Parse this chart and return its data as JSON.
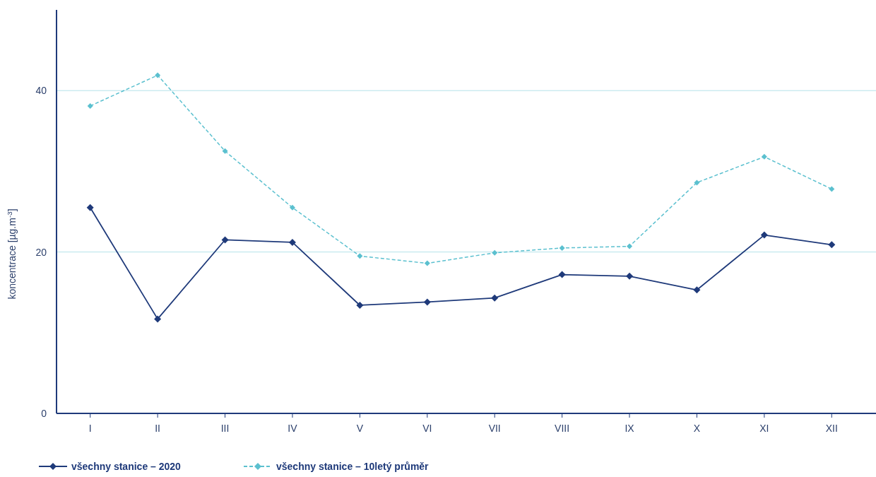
{
  "chart_data": {
    "type": "line",
    "ylabel": "koncentrace [µg.m$^{-3}$]",
    "categories": [
      "I",
      "II",
      "III",
      "IV",
      "V",
      "VI",
      "VII",
      "VIII",
      "IX",
      "X",
      "XI",
      "XII"
    ],
    "series": [
      {
        "name": "všechny stanice – 2020",
        "color": "#1f3a7a",
        "marker": "diamond",
        "line_style": "solid",
        "values": [
          25.5,
          11.7,
          21.5,
          21.2,
          13.4,
          13.8,
          14.3,
          17.2,
          17.0,
          15.3,
          22.1,
          20.9
        ]
      },
      {
        "name": "všechny stanice – 10letý průměr",
        "color": "#5bc0cf",
        "marker": "diamond",
        "line_style": "dashed",
        "values": [
          38.1,
          41.9,
          32.5,
          25.5,
          19.5,
          18.6,
          19.9,
          20.5,
          20.7,
          28.6,
          31.8,
          27.8
        ]
      }
    ],
    "ylim": [
      0,
      50
    ],
    "yticks": [
      0,
      20,
      40
    ],
    "grid": "y",
    "legend": "bottom"
  }
}
